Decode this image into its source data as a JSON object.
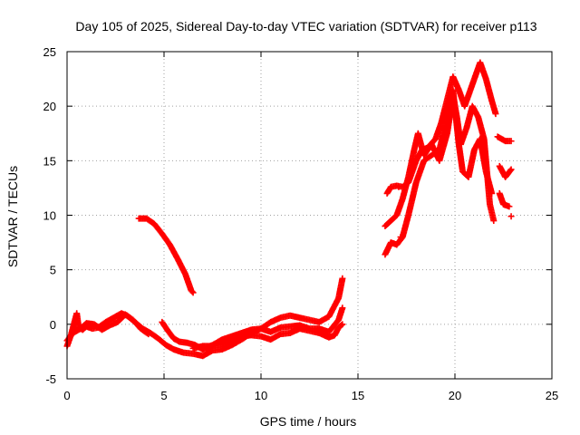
{
  "chart_data": {
    "type": "scatter",
    "title": "Day 105 of 2025, Sidereal Day-to-day VTEC variation (SDTVAR) for receiver p113",
    "xlabel": "GPS time / hours",
    "ylabel": "SDTVAR / TECUs",
    "xlim": [
      0,
      25
    ],
    "ylim": [
      -5,
      25
    ],
    "xticks": [
      "0",
      "5",
      "10",
      "15",
      "20",
      "25"
    ],
    "yticks": [
      "-5",
      "0",
      "5",
      "10",
      "15",
      "20",
      "25"
    ],
    "grid": true,
    "marker": "plus",
    "series": [
      {
        "name": "SDTVAR",
        "color": "#ff0000",
        "segments": [
          [
            [
              0.0,
              -2.0
            ],
            [
              0.2,
              -1.0
            ],
            [
              0.35,
              0.0
            ],
            [
              0.5,
              1.0
            ],
            [
              0.6,
              -0.3
            ],
            [
              0.8,
              -0.5
            ],
            [
              1.0,
              -0.2
            ],
            [
              1.3,
              -0.4
            ],
            [
              1.6,
              -0.3
            ],
            [
              2.0,
              0.2
            ],
            [
              2.4,
              0.6
            ],
            [
              2.8,
              1.0
            ],
            [
              3.1,
              0.8
            ],
            [
              3.5,
              0.2
            ],
            [
              3.9,
              -0.4
            ],
            [
              4.3,
              -0.8
            ],
            [
              4.7,
              -1.3
            ],
            [
              5.1,
              -1.9
            ],
            [
              5.5,
              -2.3
            ],
            [
              6.0,
              -2.6
            ],
            [
              6.5,
              -2.7
            ],
            [
              7.0,
              -2.9
            ],
            [
              7.5,
              -2.4
            ],
            [
              8.0,
              -2.3
            ],
            [
              8.5,
              -1.9
            ],
            [
              9.0,
              -1.4
            ],
            [
              9.5,
              -0.8
            ],
            [
              10.0,
              -0.4
            ],
            [
              10.5,
              0.2
            ],
            [
              11.0,
              0.6
            ],
            [
              11.5,
              0.8
            ],
            [
              12.0,
              0.6
            ],
            [
              12.5,
              0.4
            ],
            [
              13.0,
              0.2
            ],
            [
              13.5,
              0.7
            ],
            [
              14.0,
              2.4
            ],
            [
              14.2,
              4.2
            ]
          ],
          [
            [
              0.0,
              -1.5
            ],
            [
              0.3,
              -0.8
            ],
            [
              0.7,
              -0.4
            ],
            [
              1.0,
              0.1
            ],
            [
              1.4,
              0.0
            ],
            [
              1.8,
              -0.5
            ],
            [
              2.2,
              -0.1
            ],
            [
              2.6,
              0.2
            ],
            [
              3.0,
              0.9
            ],
            [
              3.4,
              0.4
            ],
            [
              3.8,
              -0.4
            ],
            [
              4.2,
              -0.9
            ]
          ],
          [
            [
              4.9,
              0.2
            ],
            [
              5.2,
              -0.6
            ],
            [
              5.5,
              -1.3
            ],
            [
              5.8,
              -1.6
            ],
            [
              6.2,
              -1.7
            ],
            [
              6.6,
              -1.9
            ],
            [
              7.0,
              -2.3
            ],
            [
              7.5,
              -1.9
            ],
            [
              8.0,
              -1.4
            ],
            [
              8.5,
              -1.1
            ],
            [
              9.0,
              -0.8
            ],
            [
              9.5,
              -0.5
            ],
            [
              10.0,
              -0.4
            ],
            [
              10.5,
              -0.7
            ],
            [
              11.0,
              -0.3
            ],
            [
              11.5,
              -0.2
            ],
            [
              12.0,
              -0.1
            ],
            [
              12.5,
              -0.4
            ],
            [
              13.0,
              -0.4
            ],
            [
              13.5,
              -0.7
            ],
            [
              14.0,
              0.4
            ],
            [
              14.2,
              1.5
            ]
          ],
          [
            [
              6.5,
              -2.2
            ],
            [
              7.0,
              -2.0
            ],
            [
              7.5,
              -2.0
            ],
            [
              8.0,
              -1.8
            ],
            [
              8.5,
              -1.5
            ],
            [
              9.0,
              -1.1
            ],
            [
              9.5,
              -1.0
            ],
            [
              10.0,
              -1.1
            ],
            [
              10.5,
              -1.4
            ],
            [
              11.0,
              -0.9
            ],
            [
              11.5,
              -0.8
            ],
            [
              12.0,
              -0.4
            ],
            [
              12.5,
              -0.6
            ],
            [
              13.0,
              -0.8
            ],
            [
              13.5,
              -1.2
            ],
            [
              13.8,
              -1.0
            ],
            [
              14.0,
              -0.3
            ],
            [
              14.2,
              0.0
            ]
          ],
          [
            [
              3.7,
              9.7
            ],
            [
              4.1,
              9.7
            ],
            [
              4.5,
              9.2
            ],
            [
              4.9,
              8.3
            ],
            [
              5.3,
              7.3
            ],
            [
              5.7,
              6.0
            ],
            [
              6.1,
              4.6
            ],
            [
              6.4,
              3.1
            ],
            [
              6.5,
              2.9
            ]
          ],
          [
            [
              16.5,
              12.0
            ],
            [
              16.7,
              12.6
            ],
            [
              17.0,
              12.7
            ],
            [
              17.3,
              12.6
            ],
            [
              17.6,
              13.0
            ],
            [
              18.0,
              15.0
            ],
            [
              18.3,
              16.0
            ],
            [
              18.6,
              16.2
            ],
            [
              19.0,
              17.0
            ],
            [
              19.3,
              18.5
            ],
            [
              19.6,
              20.6
            ],
            [
              19.9,
              22.7
            ],
            [
              20.2,
              21.5
            ],
            [
              20.5,
              20.0
            ],
            [
              20.8,
              21.5
            ],
            [
              21.1,
              23.0
            ],
            [
              21.3,
              24.0
            ],
            [
              21.6,
              22.5
            ],
            [
              21.9,
              20.5
            ],
            [
              22.1,
              19.3
            ]
          ],
          [
            [
              16.4,
              9.0
            ],
            [
              16.7,
              9.5
            ],
            [
              17.0,
              10.0
            ],
            [
              17.3,
              11.5
            ],
            [
              17.6,
              13.5
            ],
            [
              17.9,
              16.0
            ],
            [
              18.1,
              17.5
            ],
            [
              18.4,
              15.5
            ],
            [
              18.8,
              16.5
            ],
            [
              19.2,
              15.0
            ],
            [
              19.6,
              17.5
            ],
            [
              19.9,
              21.0
            ],
            [
              20.1,
              19.0
            ],
            [
              20.3,
              16.5
            ],
            [
              20.6,
              18.0
            ],
            [
              20.9,
              20.0
            ],
            [
              21.2,
              19.0
            ],
            [
              21.5,
              17.0
            ],
            [
              21.8,
              11.0
            ],
            [
              22.0,
              9.5
            ]
          ],
          [
            [
              16.4,
              6.4
            ],
            [
              16.7,
              7.5
            ],
            [
              17.0,
              7.3
            ],
            [
              17.3,
              8.0
            ],
            [
              17.6,
              10.0
            ],
            [
              18.0,
              13.0
            ],
            [
              18.4,
              15.0
            ],
            [
              18.8,
              15.5
            ],
            [
              19.2,
              16.0
            ],
            [
              19.6,
              19.0
            ],
            [
              19.9,
              21.5
            ],
            [
              20.2,
              16.5
            ],
            [
              20.4,
              14.0
            ],
            [
              20.7,
              13.5
            ],
            [
              21.0,
              16.0
            ],
            [
              21.3,
              17.0
            ],
            [
              21.6,
              14.0
            ],
            [
              21.9,
              12.0
            ]
          ],
          [
            [
              22.2,
              17.2
            ],
            [
              22.6,
              16.8
            ],
            [
              22.9,
              16.8
            ]
          ],
          [
            [
              22.3,
              14.5
            ],
            [
              22.6,
              13.5
            ],
            [
              22.9,
              14.2
            ]
          ],
          [
            [
              22.3,
              12.0
            ],
            [
              22.5,
              11.0
            ],
            [
              22.8,
              10.8
            ]
          ],
          [
            [
              22.9,
              9.9
            ]
          ],
          [
            [
              17.1,
              12.6
            ]
          ],
          [
            [
              17.2,
              8.0
            ]
          ]
        ]
      }
    ]
  }
}
